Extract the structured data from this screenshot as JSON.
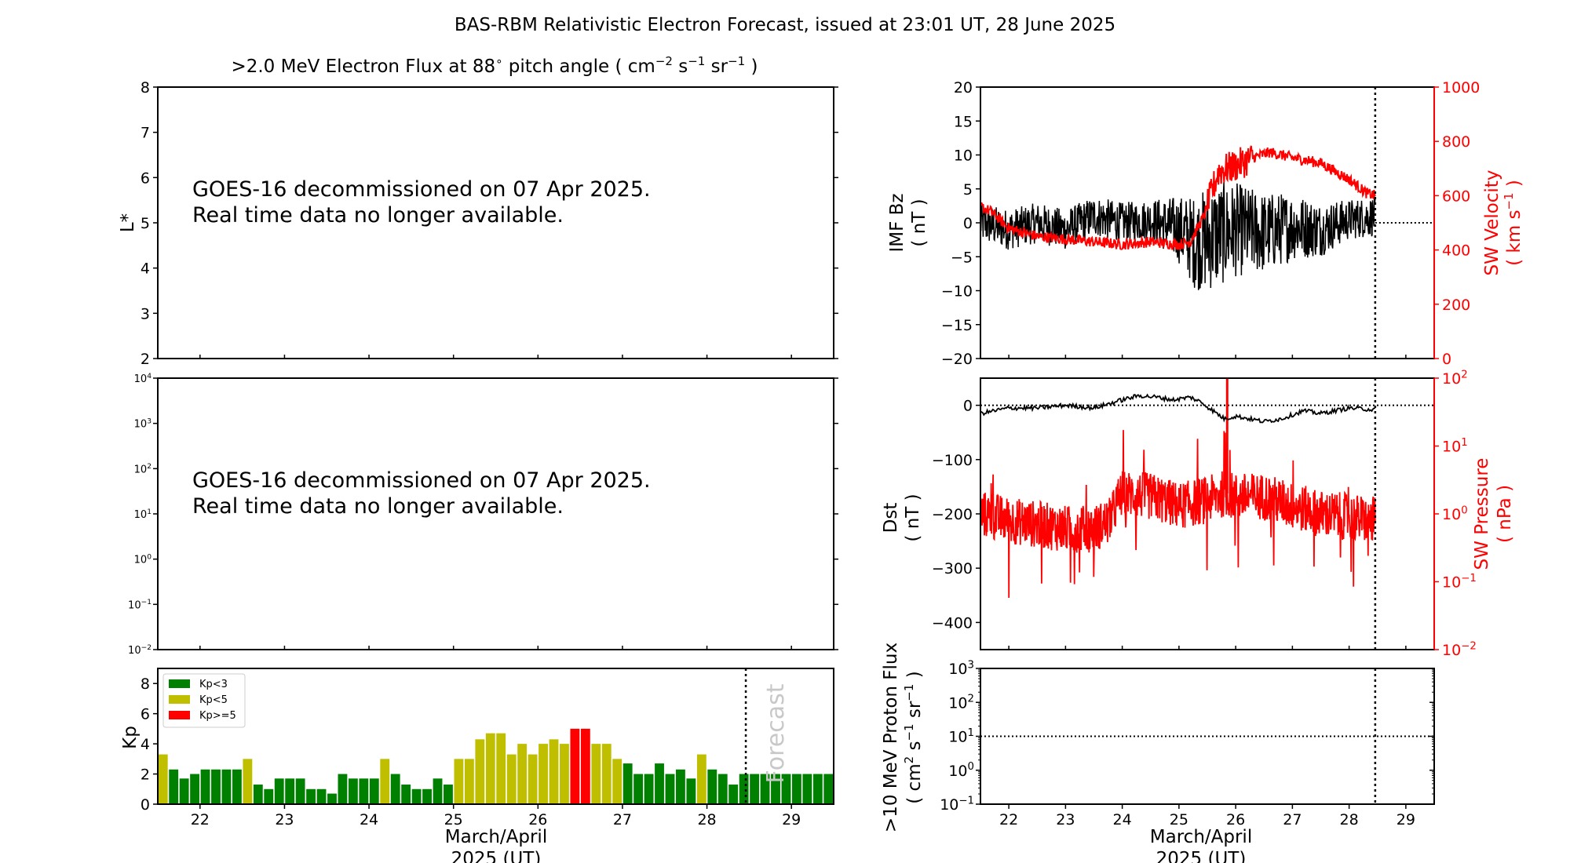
{
  "figure": {
    "title": "BAS-RBM Relativistic Electron Forecast, issued at 23:01 UT, 28 June 2025"
  },
  "colors": {
    "black": "#000000",
    "red": "#ff0000",
    "kp_green": "#008000",
    "kp_yellow": "#bfbf00",
    "kp_red": "#ff0000",
    "forecast_text": "#c8c8c8"
  },
  "panels": {
    "flux_lstar": {
      "title_main": ">2.0 MeV Electron Flux at 88",
      "title_unit_open": " pitch angle ( cm",
      "title_sup1": "−2",
      "title_s": " s",
      "title_sup2": "−1",
      "title_sr": " sr",
      "title_sup3": "−1",
      "title_close": " )",
      "degree_symbol": "∘",
      "ylabel": "L*",
      "yticks": [
        "2",
        "3",
        "4",
        "5",
        "6",
        "7",
        "8"
      ],
      "message_line1": "GOES-16 decommissioned on 07 Apr 2025.",
      "message_line2": "Real time data no longer available."
    },
    "flux_energy": {
      "ytick_base": "10",
      "ytick_exponents": [
        "−2",
        "−1",
        "0",
        "1",
        "2",
        "3",
        "4"
      ],
      "message_line1": "GOES-16 decommissioned on 07 Apr 2025.",
      "message_line2": "Real time data no longer available."
    },
    "kp": {
      "ylabel": "Kp",
      "yticks": [
        "0",
        "2",
        "4",
        "6",
        "8"
      ],
      "forecast_label": "Forecast",
      "legend": [
        {
          "label": "Kp<3",
          "color": "#008000"
        },
        {
          "label": "Kp<5",
          "color": "#bfbf00"
        },
        {
          "label": "Kp>=5",
          "color": "#ff0000"
        }
      ]
    },
    "imf_sw": {
      "ylabel_left_line1": "IMF Bz",
      "ylabel_left_line2": "( nT )",
      "ylabel_right_line1": "SW Velocity",
      "ylabel_right_line2_open": "( km s",
      "ylabel_right_sup": "−1",
      "ylabel_right_line2_close": " )",
      "yticks_left": [
        "−20",
        "−15",
        "−10",
        "−5",
        "0",
        "5",
        "10",
        "15",
        "20"
      ],
      "yticks_right": [
        "0",
        "200",
        "400",
        "600",
        "800",
        "1000"
      ]
    },
    "dst_pressure": {
      "ylabel_left_line1": "Dst",
      "ylabel_left_line2": "( nT )",
      "ylabel_right_line1": "SW Pressure",
      "ylabel_right_line2": "( nPa )",
      "yticks_left": [
        "−400",
        "−300",
        "−200",
        "−100",
        "0"
      ],
      "ytick_base": "10",
      "yticks_right_exponents": [
        "−2",
        "−1",
        "0",
        "1",
        "2"
      ]
    },
    "proton": {
      "ylabel_line1": ">10 MeV Proton Flux",
      "ylabel_line2_open": "( cm",
      "ylabel_sup1": "2",
      "ylabel_s": " s",
      "ylabel_sup2": "−1",
      "ylabel_sr": " sr",
      "ylabel_sup3": "−1",
      "ylabel_close": " )",
      "ytick_base": "10",
      "ytick_exponents": [
        "−1",
        "0",
        "1",
        "2",
        "3"
      ]
    }
  },
  "xaxis": {
    "ticks": [
      "22",
      "23",
      "24",
      "25",
      "26",
      "27",
      "28",
      "29"
    ],
    "xlabel_line1": "March/April",
    "xlabel_line2": "2025 (UT)"
  },
  "chart_data": [
    {
      "type": "line",
      "panel": "flux_lstar",
      "xlim": [
        "21.5",
        "29.5"
      ],
      "ylim": [
        2,
        8
      ],
      "series": []
    },
    {
      "type": "line",
      "panel": "flux_energy",
      "yscale": "log",
      "ylim": [
        0.01,
        10000
      ],
      "series": []
    },
    {
      "type": "bar",
      "panel": "kp",
      "ylabel": "Kp",
      "ylim": [
        0,
        9
      ],
      "x_start_day": 21.5,
      "bar_step_days": 0.125,
      "forecast_start_day": 28.46,
      "values": [
        3.3,
        2.3,
        1.7,
        2.0,
        2.3,
        2.3,
        2.3,
        2.3,
        3.0,
        1.3,
        1.0,
        1.7,
        1.7,
        1.7,
        1.0,
        1.0,
        0.7,
        2.0,
        1.7,
        1.7,
        1.7,
        3.0,
        2.0,
        1.3,
        1.0,
        1.0,
        1.7,
        1.3,
        3.0,
        3.0,
        4.3,
        4.7,
        4.7,
        3.3,
        4.0,
        3.3,
        4.0,
        4.3,
        4.0,
        5.0,
        5.0,
        4.0,
        4.0,
        3.0,
        2.7,
        2.0,
        2.0,
        2.7,
        2.0,
        2.3,
        1.7,
        3.3,
        2.3,
        2.0,
        1.3,
        2.0,
        2.0,
        2.0,
        2.0,
        2.0,
        2.0,
        2.0,
        2.0,
        2.0
      ],
      "legend": [
        "Kp<3",
        "Kp<5",
        "Kp>=5"
      ]
    },
    {
      "type": "line",
      "panel": "imf_sw",
      "xlim": [
        21.5,
        29.5
      ],
      "now_day": 28.46,
      "series": [
        {
          "name": "IMF Bz",
          "axis": "left",
          "ylim": [
            -20,
            20
          ],
          "x": [
            21.5,
            22.0,
            22.5,
            23.0,
            23.5,
            24.0,
            24.5,
            25.0,
            25.3,
            25.6,
            26.0,
            26.5,
            27.0,
            27.5,
            28.0,
            28.46
          ],
          "y": [
            0,
            -1,
            0,
            -1,
            1,
            0,
            0.5,
            -1,
            -3,
            -2,
            -1,
            -1.5,
            -0.5,
            -1,
            0.5,
            1
          ],
          "amplitude": [
            3,
            3,
            3,
            3,
            3,
            3,
            3,
            5,
            7,
            8,
            7,
            6,
            5,
            4,
            3,
            3
          ]
        },
        {
          "name": "SW Velocity",
          "axis": "right",
          "ylim": [
            0,
            1000
          ],
          "x": [
            21.5,
            21.7,
            22.0,
            22.5,
            23.0,
            23.5,
            24.0,
            24.5,
            25.0,
            25.2,
            25.45,
            25.7,
            26.0,
            26.3,
            26.6,
            27.0,
            27.5,
            28.0,
            28.3,
            28.46
          ],
          "y": [
            560,
            540,
            480,
            450,
            440,
            430,
            420,
            430,
            420,
            430,
            530,
            690,
            710,
            740,
            760,
            740,
            720,
            660,
            610,
            600
          ],
          "amplitude": 20
        }
      ]
    },
    {
      "type": "line",
      "panel": "dst_pressure",
      "xlim": [
        21.5,
        29.5
      ],
      "now_day": 28.46,
      "series": [
        {
          "name": "Dst",
          "axis": "left",
          "ylim": [
            -450,
            50
          ],
          "x": [
            21.5,
            22.0,
            22.5,
            23.0,
            23.5,
            24.0,
            24.3,
            24.6,
            24.9,
            25.2,
            25.4,
            25.8,
            26.0,
            26.5,
            26.8,
            27.2,
            27.5,
            28.0,
            28.46
          ],
          "y": [
            -15,
            -5,
            -5,
            0,
            -5,
            10,
            18,
            15,
            10,
            15,
            5,
            -25,
            -20,
            -30,
            -25,
            -10,
            -15,
            -5,
            -8
          ]
        },
        {
          "name": "SW Pressure",
          "axis": "right",
          "yscale": "log",
          "ylim": [
            0.01,
            100
          ],
          "x": [
            21.5,
            22.0,
            22.5,
            23.0,
            23.5,
            23.8,
            24.0,
            24.5,
            25.0,
            25.5,
            25.8,
            26.0,
            26.5,
            27.0,
            27.5,
            28.0,
            28.46
          ],
          "y": [
            1.0,
            0.8,
            0.7,
            0.6,
            0.6,
            0.8,
            2.0,
            1.8,
            1.3,
            1.6,
            2.0,
            1.8,
            1.8,
            1.3,
            1.0,
            0.9,
            0.8
          ]
        }
      ]
    },
    {
      "type": "line",
      "panel": "proton",
      "yscale": "log",
      "ylim": [
        0.1,
        1000
      ],
      "reference_level": 10,
      "now_day": 28.46,
      "series": []
    }
  ]
}
